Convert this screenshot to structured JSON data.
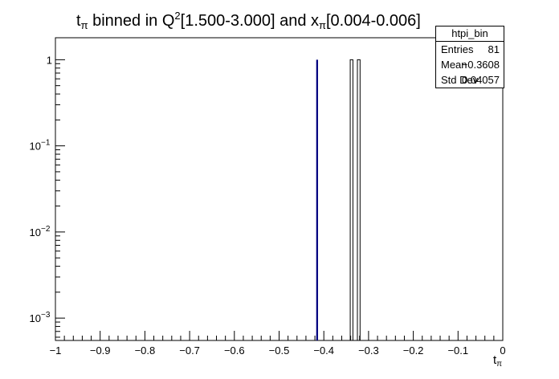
{
  "title": {
    "var": "t",
    "var_sub": "π",
    "mid": " binned in Q",
    "mid_sup": "2",
    "q_range": "[1.500-3.000] and x",
    "x_sub": "π",
    "x_range": "[0.004-0.006]"
  },
  "stats": {
    "name": "htpi_bin",
    "entries_label": "Entries",
    "entries_value": "81",
    "mean_label": "Mean",
    "mean_value": "−0.3608",
    "stddev_label": "Std Dev",
    "stddev_value": "0.04057"
  },
  "xlabel": {
    "main": "t",
    "sub": "π"
  },
  "chart_data": {
    "type": "bar",
    "xlim": [
      -1,
      0
    ],
    "ylog": true,
    "ylim": [
      0.00055,
      1.8
    ],
    "xticks": [
      {
        "v": -1,
        "label": "−1"
      },
      {
        "v": -0.9,
        "label": "−0.9"
      },
      {
        "v": -0.8,
        "label": "−0.8"
      },
      {
        "v": -0.7,
        "label": "−0.7"
      },
      {
        "v": -0.6,
        "label": "−0.6"
      },
      {
        "v": -0.5,
        "label": "−0.5"
      },
      {
        "v": -0.4,
        "label": "−0.4"
      },
      {
        "v": -0.3,
        "label": "−0.3"
      },
      {
        "v": -0.2,
        "label": "−0.2"
      },
      {
        "v": -0.1,
        "label": "−0.1"
      },
      {
        "v": 0,
        "label": "0"
      }
    ],
    "yticks": [
      {
        "v": 1,
        "label": "1",
        "exp": ""
      },
      {
        "v": 0.1,
        "label": "10",
        "exp": "−1"
      },
      {
        "v": 0.01,
        "label": "10",
        "exp": "−2"
      },
      {
        "v": 0.001,
        "label": "10",
        "exp": "−3"
      }
    ],
    "bins": [
      {
        "lo": -0.417,
        "hi": -0.413,
        "value": 1,
        "style": "filled"
      },
      {
        "lo": -0.341,
        "hi": -0.335,
        "value": 1,
        "style": "outline"
      },
      {
        "lo": -0.325,
        "hi": -0.319,
        "value": 1,
        "style": "outline"
      }
    ],
    "fill_color": "#00007f",
    "line_color": "#000000"
  }
}
